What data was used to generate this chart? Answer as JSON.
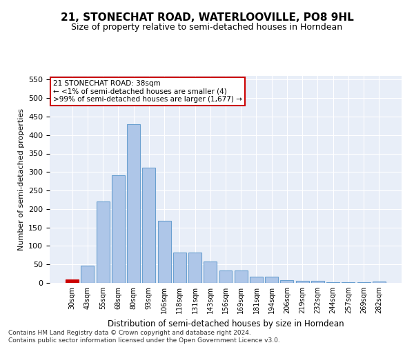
{
  "title": "21, STONECHAT ROAD, WATERLOOVILLE, PO8 9HL",
  "subtitle": "Size of property relative to semi-detached houses in Horndean",
  "xlabel": "Distribution of semi-detached houses by size in Horndean",
  "ylabel": "Number of semi-detached properties",
  "footnote": "Contains HM Land Registry data © Crown copyright and database right 2024.\nContains public sector information licensed under the Open Government Licence v3.0.",
  "annotation_title": "21 STONECHAT ROAD: 38sqm",
  "annotation_line1": "← <1% of semi-detached houses are smaller (4)",
  "annotation_line2": ">99% of semi-detached houses are larger (1,677) →",
  "bar_color": "#aec6e8",
  "bar_edge_color": "#6aa0d0",
  "highlight_color": "#cc0000",
  "categories": [
    "30sqm",
    "43sqm",
    "55sqm",
    "68sqm",
    "80sqm",
    "93sqm",
    "106sqm",
    "118sqm",
    "131sqm",
    "143sqm",
    "156sqm",
    "169sqm",
    "181sqm",
    "194sqm",
    "206sqm",
    "219sqm",
    "232sqm",
    "244sqm",
    "257sqm",
    "269sqm",
    "282sqm"
  ],
  "values": [
    10,
    47,
    221,
    291,
    430,
    311,
    168,
    83,
    83,
    57,
    34,
    34,
    16,
    16,
    8,
    5,
    5,
    2,
    2,
    2,
    3
  ],
  "highlight_index": 0,
  "ylim": [
    0,
    560
  ],
  "yticks": [
    0,
    50,
    100,
    150,
    200,
    250,
    300,
    350,
    400,
    450,
    500,
    550
  ],
  "bg_color": "#e8eef8",
  "grid_color": "#ffffff",
  "title_fontsize": 11,
  "subtitle_fontsize": 9,
  "ylabel_fontsize": 8,
  "xlabel_fontsize": 8.5,
  "footnote_fontsize": 6.5,
  "annotation_fontsize": 7.5
}
